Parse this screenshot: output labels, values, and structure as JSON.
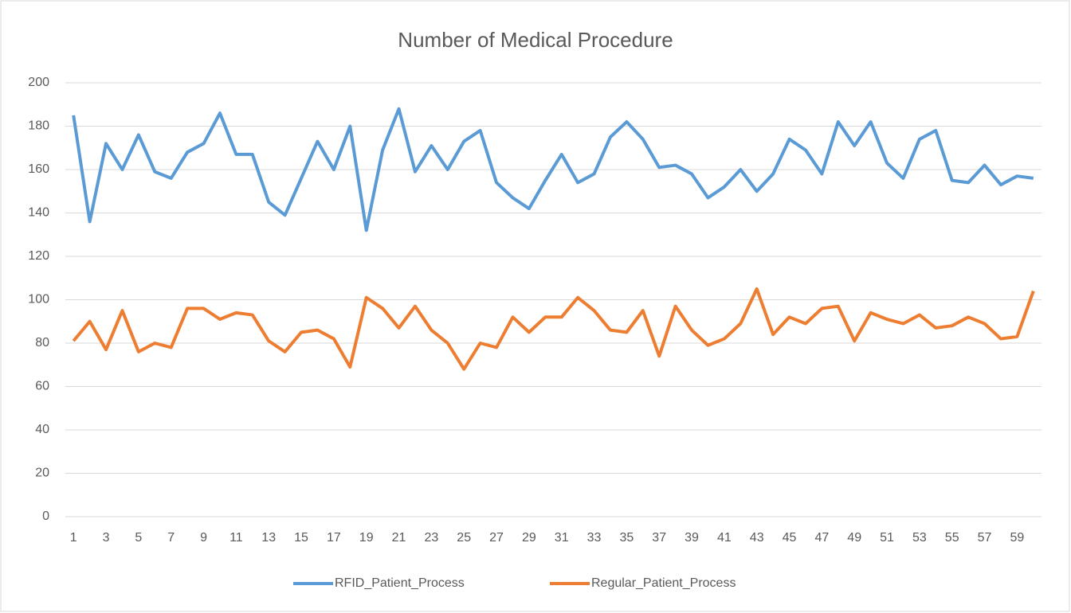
{
  "chart_data": {
    "type": "line",
    "title": "Number of Medical Procedure",
    "categories": [
      1,
      null,
      3,
      null,
      5,
      null,
      7,
      null,
      9,
      null,
      11,
      null,
      13,
      null,
      15,
      null,
      17,
      null,
      19,
      null,
      21,
      null,
      23,
      null,
      25,
      null,
      27,
      null,
      29,
      null,
      31,
      null,
      33,
      null,
      35,
      null,
      37,
      null,
      39,
      null,
      41,
      null,
      43,
      null,
      45,
      null,
      47,
      null,
      49,
      null,
      51,
      null,
      53,
      null,
      55,
      null,
      57,
      null,
      59,
      null
    ],
    "series": [
      {
        "name": "RFID_Patient_Process",
        "color": "#5b9bd5",
        "values": [
          185,
          136,
          172,
          160,
          176,
          159,
          156,
          168,
          172,
          186,
          167,
          167,
          145,
          139,
          156,
          173,
          160,
          180,
          132,
          169,
          188,
          159,
          171,
          160,
          173,
          178,
          154,
          147,
          142,
          155,
          167,
          154,
          158,
          175,
          182,
          174,
          161,
          162,
          158,
          147,
          152,
          160,
          150,
          158,
          174,
          169,
          158,
          182,
          171,
          182,
          163,
          156,
          174,
          178,
          155,
          154,
          162,
          153,
          157,
          156
        ]
      },
      {
        "name": "Regular_Patient_Process",
        "color": "#ed7d31",
        "values": [
          81,
          90,
          77,
          95,
          76,
          80,
          78,
          96,
          96,
          91,
          94,
          93,
          81,
          76,
          85,
          86,
          82,
          69,
          101,
          96,
          87,
          97,
          86,
          80,
          68,
          80,
          78,
          92,
          85,
          92,
          92,
          101,
          95,
          86,
          85,
          95,
          74,
          97,
          86,
          79,
          82,
          89,
          105,
          84,
          92,
          89,
          96,
          97,
          81,
          94,
          91,
          89,
          93,
          87,
          88,
          92,
          89,
          82,
          83,
          104
        ]
      }
    ],
    "ylim": [
      0,
      200
    ],
    "yticks": [
      0,
      20,
      40,
      60,
      80,
      100,
      120,
      140,
      160,
      180,
      200
    ],
    "grid": true,
    "legend": "bottom"
  }
}
